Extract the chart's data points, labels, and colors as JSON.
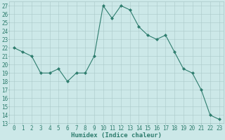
{
  "x": [
    0,
    1,
    2,
    3,
    4,
    5,
    6,
    7,
    8,
    9,
    10,
    11,
    12,
    13,
    14,
    15,
    16,
    17,
    18,
    19,
    20,
    21,
    22,
    23
  ],
  "y": [
    22,
    21.5,
    21,
    19,
    19,
    19.5,
    18,
    19,
    19,
    21,
    27,
    25.5,
    27,
    26.5,
    24.5,
    23.5,
    23,
    23.5,
    21.5,
    19.5,
    19,
    17,
    14,
    13.5
  ],
  "xlabel": "Humidex (Indice chaleur)",
  "xlim": [
    -0.5,
    23.5
  ],
  "ylim": [
    13,
    27.5
  ],
  "yticks": [
    13,
    14,
    15,
    16,
    17,
    18,
    19,
    20,
    21,
    22,
    23,
    24,
    25,
    26,
    27
  ],
  "xticks": [
    0,
    1,
    2,
    3,
    4,
    5,
    6,
    7,
    8,
    9,
    10,
    11,
    12,
    13,
    14,
    15,
    16,
    17,
    18,
    19,
    20,
    21,
    22,
    23
  ],
  "line_color": "#2e7d6e",
  "marker_color": "#2e7d6e",
  "bg_color": "#cce8e8",
  "grid_color": "#aac8c8",
  "text_color": "#2e7d6e",
  "label_fontsize": 6.5,
  "tick_fontsize": 5.5
}
